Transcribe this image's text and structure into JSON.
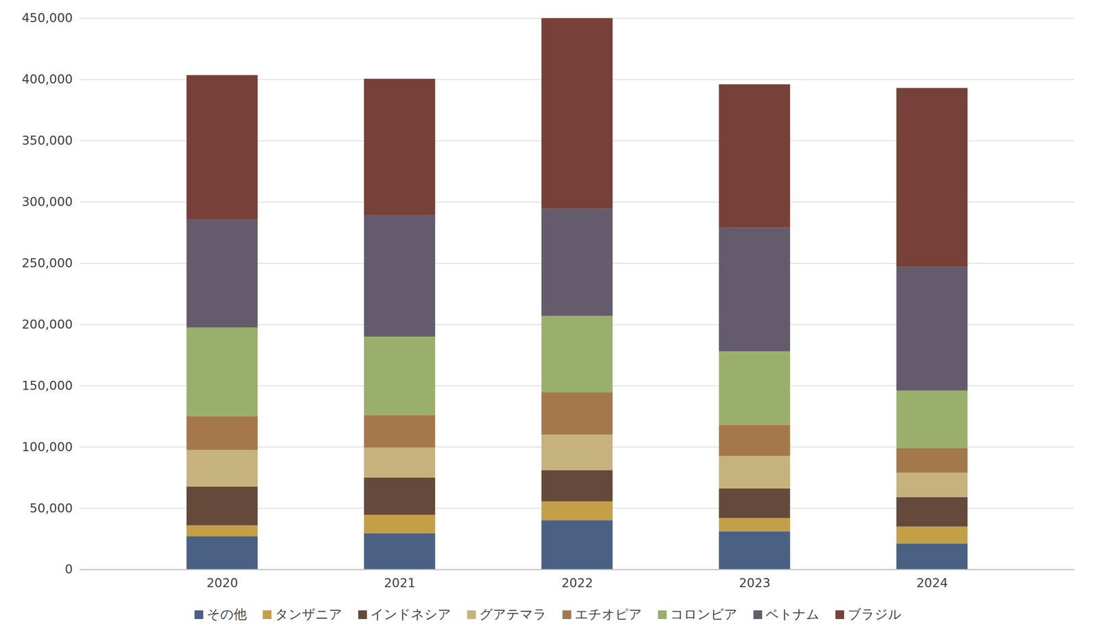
{
  "chart_data": {
    "type": "bar",
    "stacked": true,
    "grid": true,
    "legend": "bottom",
    "categories": [
      "2020",
      "2021",
      "2022",
      "2023",
      "2024"
    ],
    "series": [
      {
        "name": "その他",
        "color": "#4a6183",
        "values": [
          27000,
          29500,
          40000,
          31000,
          21000
        ]
      },
      {
        "name": "タンザニア",
        "color": "#c39f48",
        "values": [
          9000,
          15000,
          15500,
          11000,
          14000
        ]
      },
      {
        "name": "インドネシア",
        "color": "#654a3c",
        "values": [
          31500,
          30500,
          25500,
          24000,
          24000
        ]
      },
      {
        "name": "グアテマラ",
        "color": "#c6b27c",
        "values": [
          30000,
          24500,
          29000,
          26500,
          20000
        ]
      },
      {
        "name": "エチオピア",
        "color": "#a5784c",
        "values": [
          27500,
          26500,
          34500,
          25500,
          20000
        ]
      },
      {
        "name": "コロンビア",
        "color": "#9baf6c",
        "values": [
          72500,
          64000,
          62500,
          60000,
          47000
        ]
      },
      {
        "name": "ベトナム",
        "color": "#645b6d",
        "values": [
          88000,
          99000,
          87500,
          101000,
          101000
        ]
      },
      {
        "name": "ブラジル",
        "color": "#77413a",
        "values": [
          118000,
          111500,
          155500,
          117000,
          146000
        ]
      }
    ],
    "ylim": [
      0,
      450000
    ],
    "yticks": [
      0,
      {
        "value": 50000,
        "label": "50,000"
      },
      {
        "value": 100000,
        "label": "100,000"
      },
      {
        "value": 150000,
        "label": "150,000"
      },
      {
        "value": 200000,
        "label": "200,000"
      },
      {
        "value": 250000,
        "label": "250,000"
      },
      {
        "value": 300000,
        "label": "300,000"
      },
      {
        "value": 350000,
        "label": "350,000"
      },
      {
        "value": 400000,
        "label": "400,000"
      },
      {
        "value": 450000,
        "label": "450,000"
      }
    ]
  }
}
